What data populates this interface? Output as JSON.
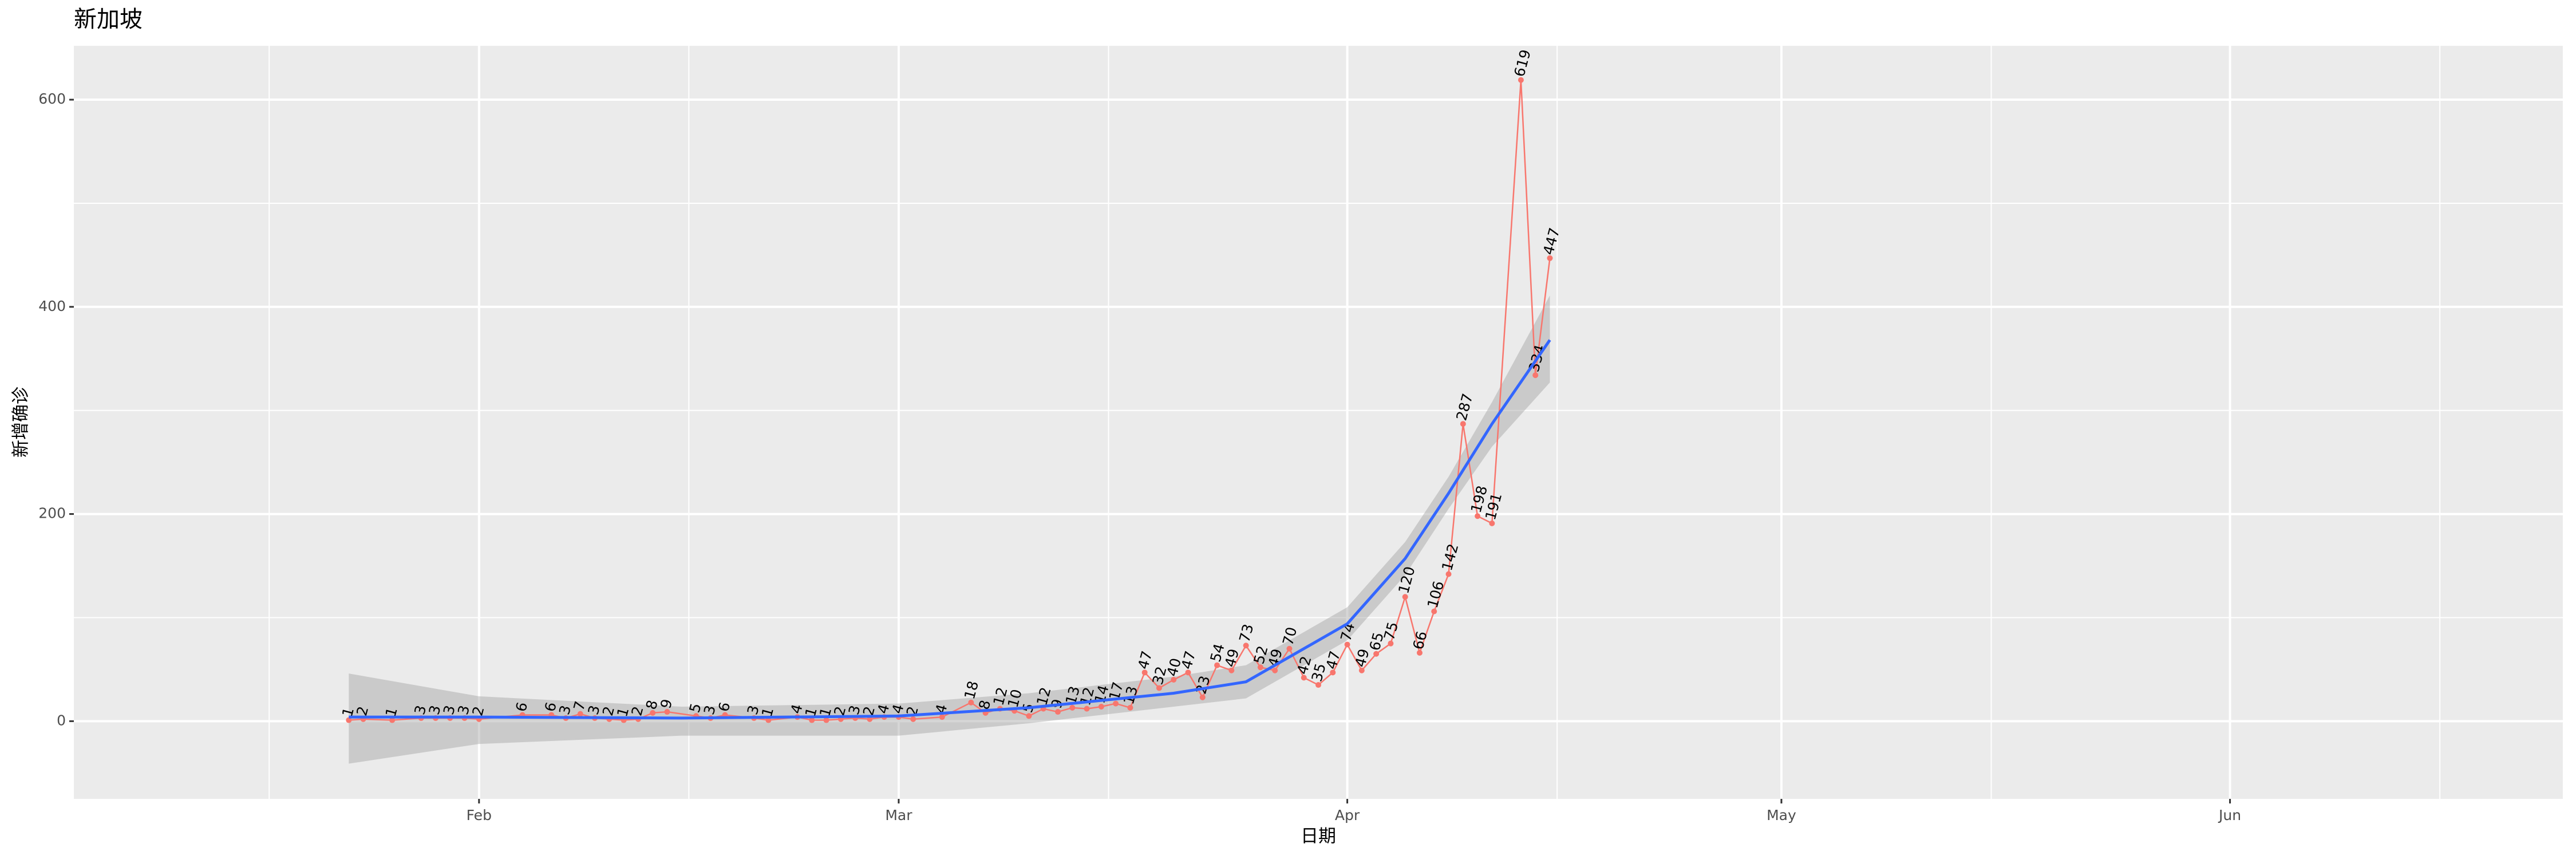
{
  "chart_data": {
    "type": "line",
    "title": "新加坡",
    "x_label": "日期",
    "y_label": "新增确诊",
    "x": [
      "01-23",
      "01-24",
      "01-26",
      "01-28",
      "01-29",
      "01-30",
      "01-31",
      "02-01",
      "02-04",
      "02-06",
      "02-07",
      "02-08",
      "02-09",
      "02-10",
      "02-11",
      "02-12",
      "02-13",
      "02-14",
      "02-16",
      "02-17",
      "02-18",
      "02-20",
      "02-21",
      "02-23",
      "02-24",
      "02-25",
      "02-26",
      "02-27",
      "02-28",
      "02-29",
      "03-01",
      "03-02",
      "03-04",
      "03-06",
      "03-07",
      "03-08",
      "03-09",
      "03-10",
      "03-11",
      "03-12",
      "03-13",
      "03-14",
      "03-15",
      "03-16",
      "03-17",
      "03-18",
      "03-19",
      "03-20",
      "03-21",
      "03-22",
      "03-23",
      "03-24",
      "03-25",
      "03-26",
      "03-27",
      "03-28",
      "03-29",
      "03-30",
      "03-31",
      "04-01",
      "04-02",
      "04-03",
      "04-04",
      "04-05",
      "04-06",
      "04-07",
      "04-08",
      "04-09",
      "04-10",
      "04-11",
      "04-13",
      "04-14",
      "04-15"
    ],
    "series": [
      {
        "color": "#F8766D",
        "values": [
          1,
          2,
          1,
          3,
          3,
          3,
          3,
          2,
          6,
          6,
          3,
          7,
          3,
          2,
          1,
          2,
          8,
          9,
          5,
          3,
          6,
          3,
          1,
          4,
          1,
          1,
          2,
          3,
          2,
          4,
          4,
          2,
          4,
          18,
          8,
          12,
          10,
          5,
          12,
          9,
          13,
          12,
          14,
          17,
          13,
          47,
          32,
          40,
          47,
          23,
          54,
          49,
          73,
          52,
          49,
          70,
          42,
          35,
          47,
          74,
          49,
          65,
          75,
          120,
          66,
          106,
          142,
          287,
          198,
          191,
          619,
          334,
          447
        ]
      }
    ],
    "smooth": {
      "color": "#3366FF",
      "x": [
        "01-23",
        "02-01",
        "02-15",
        "03-01",
        "03-10",
        "03-20",
        "03-25",
        "04-01",
        "04-05",
        "04-08",
        "04-11",
        "04-15"
      ],
      "values": [
        4,
        4,
        3,
        5,
        13,
        27,
        38,
        94,
        157,
        220,
        287,
        368
      ],
      "lower": [
        -41,
        -22,
        -14,
        -14,
        -2,
        14,
        22,
        78,
        141,
        205,
        265,
        327
      ],
      "upper": [
        46,
        24,
        14,
        17,
        27,
        43,
        54,
        110,
        173,
        236,
        308,
        411
      ]
    },
    "xlim": [
      "01-04",
      "06-24"
    ],
    "xticks": [
      {
        "value": "02-01",
        "label": "Feb"
      },
      {
        "value": "03-01",
        "label": "Mar"
      },
      {
        "value": "04-01",
        "label": "Apr"
      },
      {
        "value": "05-01",
        "label": "May"
      },
      {
        "value": "06-01",
        "label": "Jun"
      }
    ],
    "ylim": [
      -75,
      652
    ],
    "yticks": [
      0,
      200,
      400,
      600
    ],
    "grid": true
  }
}
